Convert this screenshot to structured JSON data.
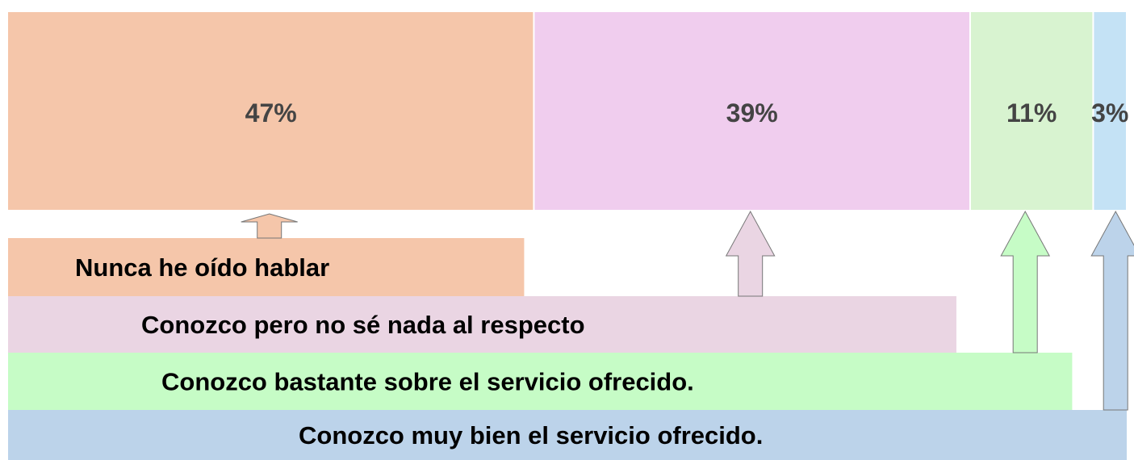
{
  "chart_data": {
    "type": "stacked_bar",
    "series": [
      {
        "name": "Nunca he oído hablar",
        "color": "#f5c6aa",
        "values": [
          47
        ],
        "value_labels": [
          "47%"
        ]
      },
      {
        "name": "Conozco pero no sé nada al respecto",
        "color": "#f0cdee",
        "values": [
          39
        ],
        "value_labels": [
          "39%"
        ]
      },
      {
        "name": "Conozco bastante sobre el servicio ofrecido.",
        "color": "#d8f3d0",
        "values": [
          11
        ],
        "value_labels": [
          "11%"
        ]
      },
      {
        "name": "Conozco muy bien el servicio ofrecido.",
        "color": "#c4e2f5",
        "values": [
          3
        ],
        "value_labels": [
          "3%"
        ]
      }
    ]
  }
}
